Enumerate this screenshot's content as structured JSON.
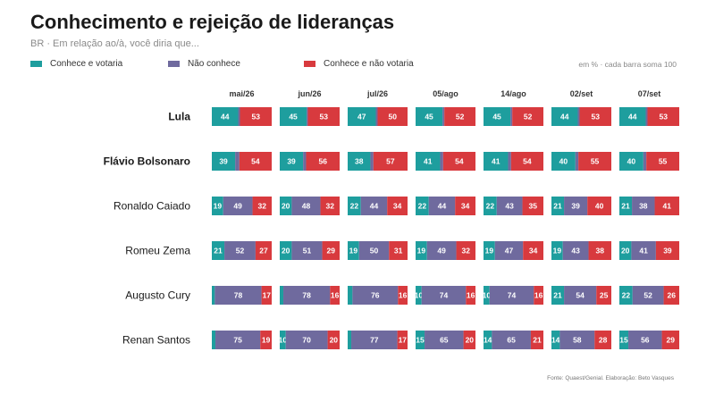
{
  "header": {
    "title": "Conhecimento e rejeição de lideranças",
    "subtitle": "BR · Em relação ao/à, você diria que..."
  },
  "legend": {
    "items": [
      {
        "label": "Conhece e votaria",
        "color": "#1e9e9e"
      },
      {
        "label": "Não conhece",
        "color": "#6f6a9e"
      },
      {
        "label": "Conhece e não votaria",
        "color": "#d83a3e"
      }
    ],
    "note": "em %  · cada barra soma 100"
  },
  "footer": {
    "source": "Fonte: Quaest/Genial. Elaboração: Beto Vasques"
  },
  "chart_data": {
    "type": "bar",
    "stacked": true,
    "normalized_to": 100,
    "categories": [
      "mai/26",
      "jun/26",
      "jul/26",
      "05/ago",
      "14/ago",
      "02/set",
      "07/set"
    ],
    "rows": [
      {
        "name": "Lula",
        "bold": true,
        "values": [
          [
            44,
            3,
            53
          ],
          [
            45,
            2,
            53
          ],
          [
            47,
            3,
            50
          ],
          [
            45,
            3,
            52
          ],
          [
            45,
            3,
            52
          ],
          [
            44,
            3,
            53
          ],
          [
            44,
            3,
            53
          ]
        ]
      },
      {
        "name": "Flávio Bolsonaro",
        "bold": true,
        "values": [
          [
            39,
            7,
            54
          ],
          [
            39,
            5,
            56
          ],
          [
            38,
            5,
            57
          ],
          [
            41,
            5,
            54
          ],
          [
            41,
            5,
            54
          ],
          [
            40,
            5,
            55
          ],
          [
            40,
            5,
            55
          ]
        ]
      },
      {
        "name": "Ronaldo Caiado",
        "bold": false,
        "values": [
          [
            19,
            49,
            32
          ],
          [
            20,
            48,
            32
          ],
          [
            22,
            44,
            34
          ],
          [
            22,
            44,
            34
          ],
          [
            22,
            43,
            35
          ],
          [
            21,
            39,
            40
          ],
          [
            21,
            38,
            41
          ]
        ]
      },
      {
        "name": "Romeu Zema",
        "bold": false,
        "values": [
          [
            21,
            52,
            27
          ],
          [
            20,
            51,
            29
          ],
          [
            19,
            50,
            31
          ],
          [
            19,
            49,
            32
          ],
          [
            19,
            47,
            34
          ],
          [
            19,
            43,
            38
          ],
          [
            20,
            41,
            39
          ]
        ]
      },
      {
        "name": "Augusto Cury",
        "bold": false,
        "values": [
          [
            5,
            78,
            17
          ],
          [
            6,
            78,
            16
          ],
          [
            8,
            76,
            16
          ],
          [
            10,
            74,
            16
          ],
          [
            10,
            74,
            16
          ],
          [
            21,
            54,
            25
          ],
          [
            22,
            52,
            26
          ]
        ]
      },
      {
        "name": "Renan Santos",
        "bold": false,
        "values": [
          [
            6,
            75,
            19
          ],
          [
            10,
            70,
            20
          ],
          [
            6,
            77,
            17
          ],
          [
            15,
            65,
            20
          ],
          [
            14,
            65,
            21
          ],
          [
            14,
            58,
            28
          ],
          [
            15,
            56,
            29
          ]
        ]
      }
    ],
    "series": [
      {
        "name": "Conhece e votaria",
        "color": "#1e9e9e"
      },
      {
        "name": "Não conhece",
        "color": "#6f6a9e"
      },
      {
        "name": "Conhece e não votaria",
        "color": "#d83a3e"
      }
    ],
    "hidden_labels": [
      "0|0|1",
      "0|1|1",
      "0|2|1",
      "0|3|1",
      "0|4|1",
      "0|5|1",
      "0|6|1",
      "1|0|1",
      "1|1|1",
      "1|2|1",
      "1|3|1",
      "1|4|1",
      "1|5|1",
      "1|6|1",
      "4|0|0",
      "4|1|0",
      "4|2|0",
      "5|0|0",
      "5|2|0"
    ]
  }
}
